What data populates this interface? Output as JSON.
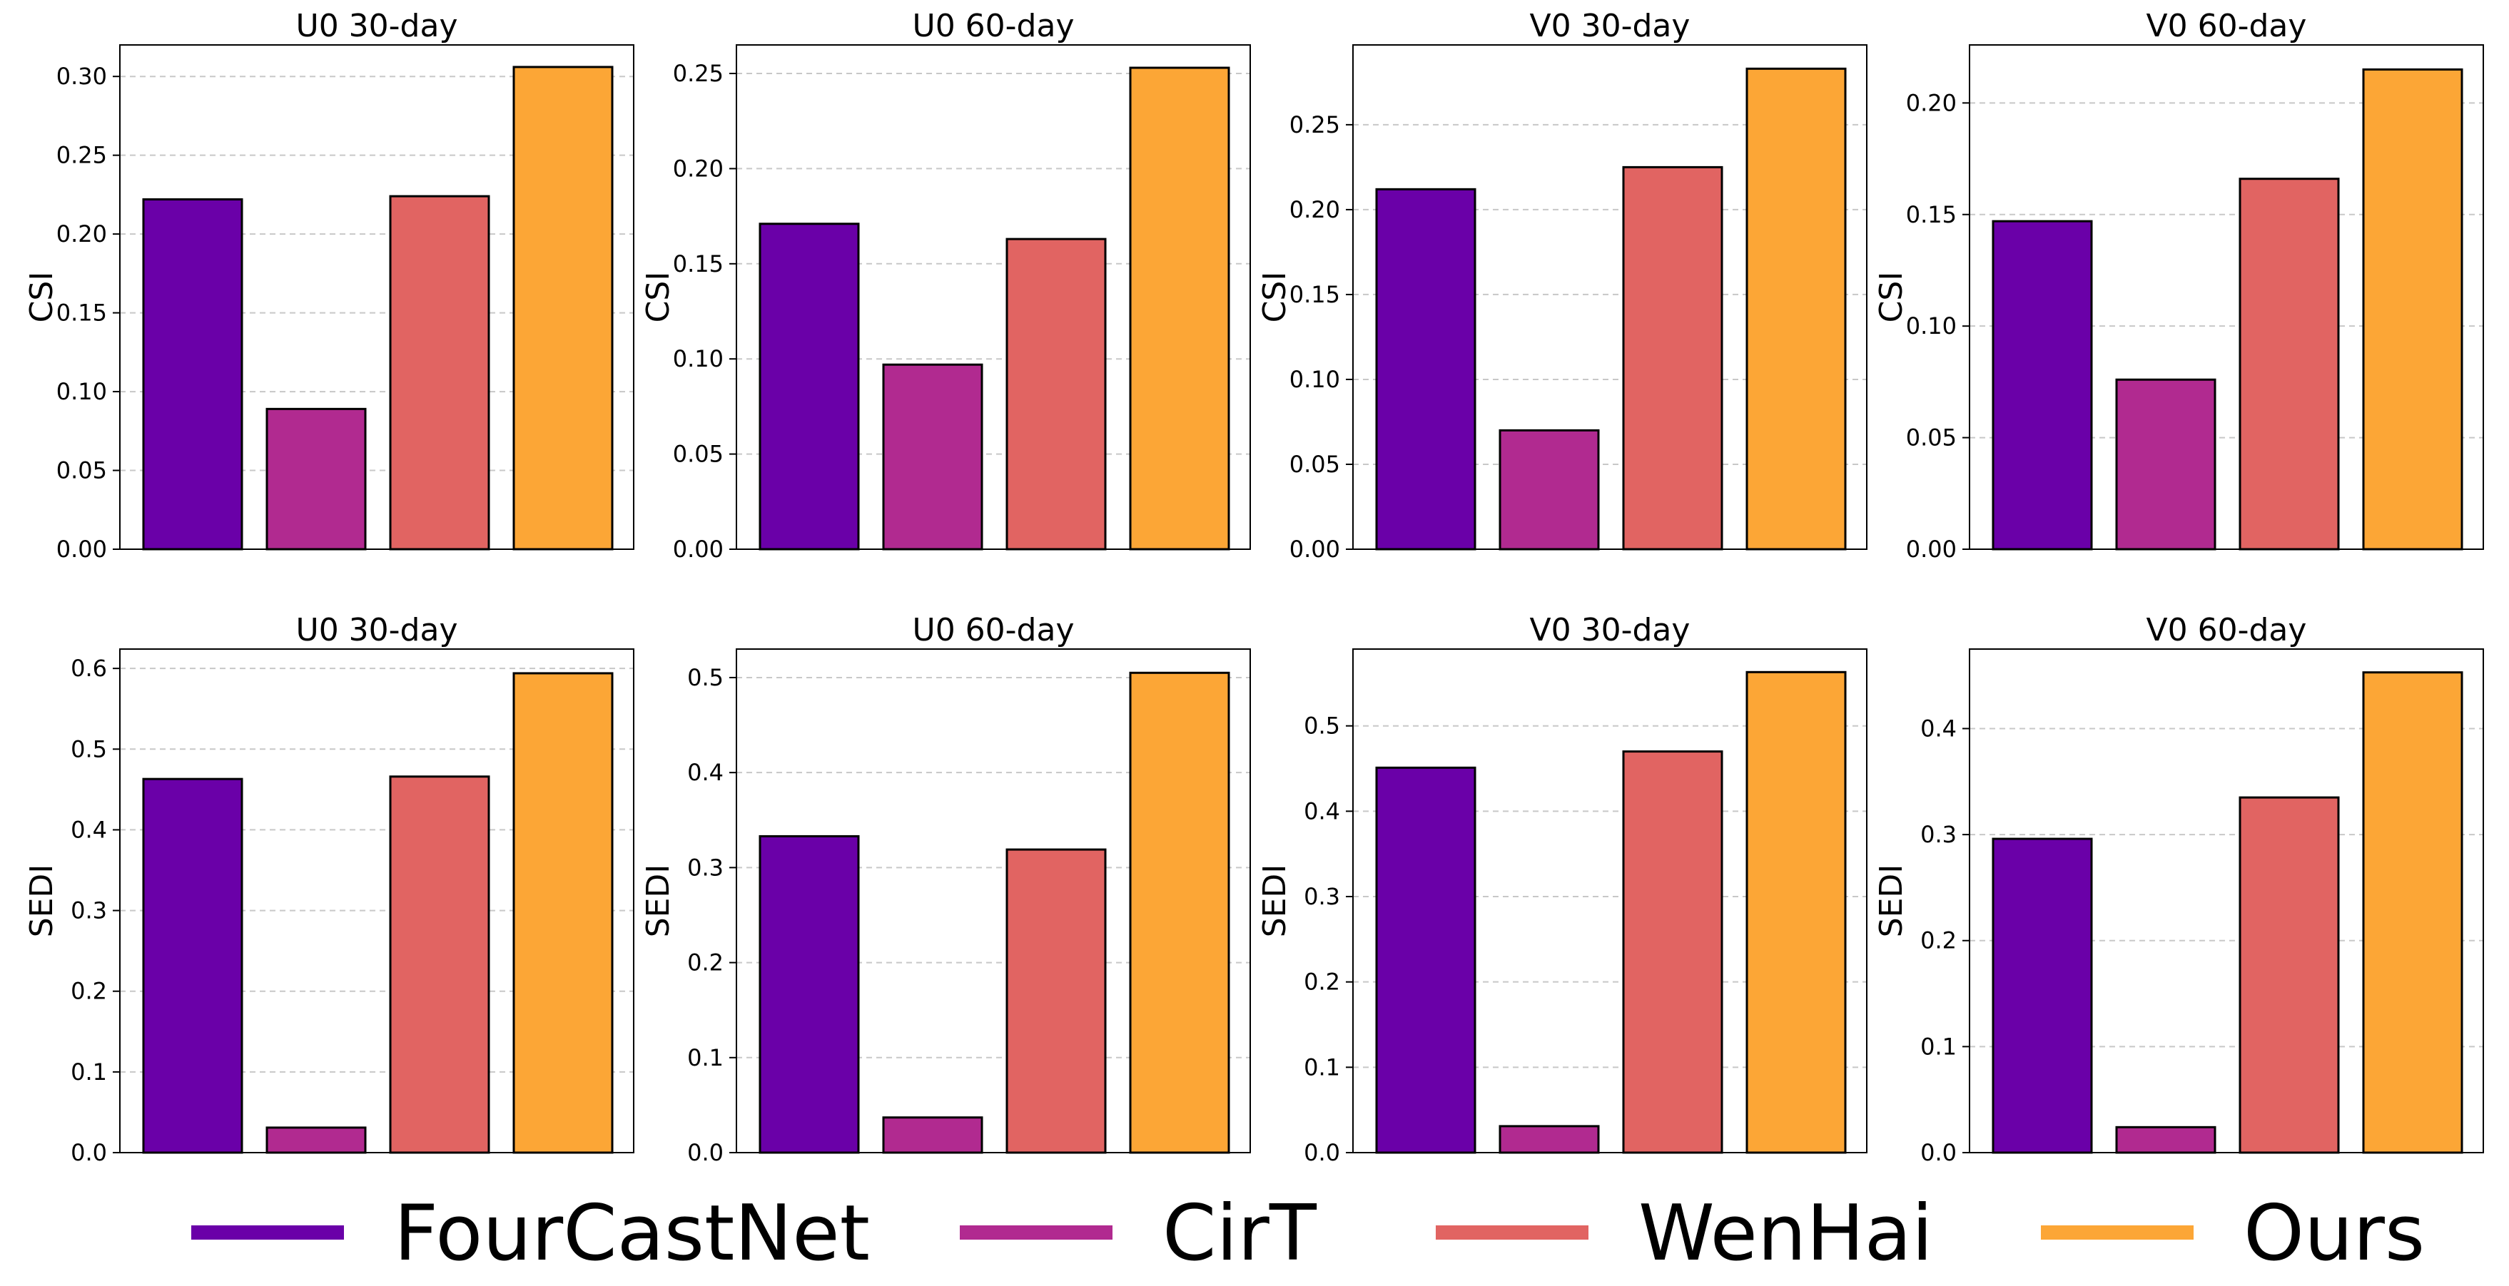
{
  "chart_data": [
    {
      "type": "bar",
      "title": "U0 30-day",
      "ylabel": "CSI",
      "categories": [
        "FourCastNet",
        "CirT",
        "WenHai",
        "Ours"
      ],
      "values": [
        0.222,
        0.089,
        0.224,
        0.306
      ],
      "ylim": [
        0,
        0.32
      ],
      "yticks": [
        0.0,
        0.05,
        0.1,
        0.15,
        0.2,
        0.25,
        0.3
      ],
      "ytick_labels": [
        "0.00",
        "0.05",
        "0.10",
        "0.15",
        "0.20",
        "0.25",
        "0.30"
      ],
      "grid": true
    },
    {
      "type": "bar",
      "title": "U0 60-day",
      "ylabel": "CSI",
      "categories": [
        "FourCastNet",
        "CirT",
        "WenHai",
        "Ours"
      ],
      "values": [
        0.171,
        0.097,
        0.163,
        0.253
      ],
      "ylim": [
        0,
        0.265
      ],
      "yticks": [
        0.0,
        0.05,
        0.1,
        0.15,
        0.2,
        0.25
      ],
      "ytick_labels": [
        "0.00",
        "0.05",
        "0.10",
        "0.15",
        "0.20",
        "0.25"
      ],
      "grid": true
    },
    {
      "type": "bar",
      "title": "V0 30-day",
      "ylabel": "CSI",
      "categories": [
        "FourCastNet",
        "CirT",
        "WenHai",
        "Ours"
      ],
      "values": [
        0.212,
        0.07,
        0.225,
        0.283
      ],
      "ylim": [
        0,
        0.297
      ],
      "yticks": [
        0.0,
        0.05,
        0.1,
        0.15,
        0.2,
        0.25
      ],
      "ytick_labels": [
        "0.00",
        "0.05",
        "0.10",
        "0.15",
        "0.20",
        "0.25"
      ],
      "grid": true
    },
    {
      "type": "bar",
      "title": "V0 60-day",
      "ylabel": "CSI",
      "categories": [
        "FourCastNet",
        "CirT",
        "WenHai",
        "Ours"
      ],
      "values": [
        0.147,
        0.076,
        0.166,
        0.215
      ],
      "ylim": [
        0,
        0.226
      ],
      "yticks": [
        0.0,
        0.05,
        0.1,
        0.15,
        0.2
      ],
      "ytick_labels": [
        "0.00",
        "0.05",
        "0.10",
        "0.15",
        "0.20"
      ],
      "grid": true
    },
    {
      "type": "bar",
      "title": "U0 30-day",
      "ylabel": "SEDI",
      "categories": [
        "FourCastNet",
        "CirT",
        "WenHai",
        "Ours"
      ],
      "values": [
        0.463,
        0.031,
        0.466,
        0.594
      ],
      "ylim": [
        0,
        0.624
      ],
      "yticks": [
        0.0,
        0.1,
        0.2,
        0.3,
        0.4,
        0.5,
        0.6
      ],
      "ytick_labels": [
        "0.0",
        "0.1",
        "0.2",
        "0.3",
        "0.4",
        "0.5",
        "0.6"
      ],
      "grid": true
    },
    {
      "type": "bar",
      "title": "U0 60-day",
      "ylabel": "SEDI",
      "categories": [
        "FourCastNet",
        "CirT",
        "WenHai",
        "Ours"
      ],
      "values": [
        0.333,
        0.037,
        0.319,
        0.505
      ],
      "ylim": [
        0,
        0.53
      ],
      "yticks": [
        0.0,
        0.1,
        0.2,
        0.3,
        0.4,
        0.5
      ],
      "ytick_labels": [
        "0.0",
        "0.1",
        "0.2",
        "0.3",
        "0.4",
        "0.5"
      ],
      "grid": true
    },
    {
      "type": "bar",
      "title": "V0 30-day",
      "ylabel": "SEDI",
      "categories": [
        "FourCastNet",
        "CirT",
        "WenHai",
        "Ours"
      ],
      "values": [
        0.451,
        0.031,
        0.47,
        0.563
      ],
      "ylim": [
        0,
        0.59
      ],
      "yticks": [
        0.0,
        0.1,
        0.2,
        0.3,
        0.4,
        0.5
      ],
      "ytick_labels": [
        "0.0",
        "0.1",
        "0.2",
        "0.3",
        "0.4",
        "0.5"
      ],
      "grid": true
    },
    {
      "type": "bar",
      "title": "V0 60-day",
      "ylabel": "SEDI",
      "categories": [
        "FourCastNet",
        "CirT",
        "WenHai",
        "Ours"
      ],
      "values": [
        0.296,
        0.024,
        0.335,
        0.453
      ],
      "ylim": [
        0,
        0.475
      ],
      "yticks": [
        0.0,
        0.1,
        0.2,
        0.3,
        0.4
      ],
      "ytick_labels": [
        "0.0",
        "0.1",
        "0.2",
        "0.3",
        "0.4"
      ],
      "grid": true
    }
  ],
  "legend": {
    "placement": "bottom",
    "items": [
      {
        "label": "FourCastNet",
        "color": "#6a00a8"
      },
      {
        "label": "CirT",
        "color": "#b12a90"
      },
      {
        "label": "WenHai",
        "color": "#e16462"
      },
      {
        "label": "Ours",
        "color": "#fca636"
      }
    ]
  }
}
